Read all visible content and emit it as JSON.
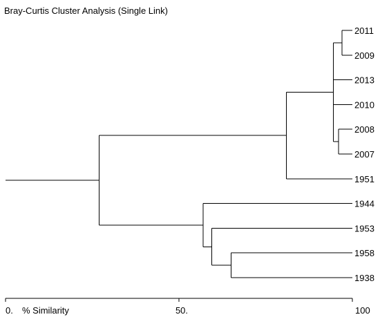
{
  "title": "Bray-Curtis Cluster Analysis (Single Link)",
  "colors": {
    "line": "#000000",
    "text": "#000000",
    "background": "#ffffff"
  },
  "chart_data": {
    "type": "dendrogram",
    "title": "Bray-Curtis Cluster Analysis (Single Link)",
    "xlabel": "% Similarity",
    "xlim": [
      0,
      100
    ],
    "ticks": [
      {
        "value": 0,
        "label": "0."
      },
      {
        "value": 50,
        "label": "50."
      },
      {
        "value": 100,
        "label": "100"
      }
    ],
    "leaves": [
      "2011",
      "2009",
      "2013",
      "2010",
      "2008",
      "2007",
      "1951",
      "1944",
      "1953",
      "1958",
      "1938"
    ],
    "merges": [
      {
        "id": "c2011_2009",
        "left": "2011",
        "right": "2009",
        "similarity": 97.0
      },
      {
        "id": "c2008_2007",
        "left": "2008",
        "right": "2007",
        "similarity": 96.0
      },
      {
        "id": "c_recent",
        "members": [
          "c2011_2009",
          "2013",
          "2010",
          "c2008_2007"
        ],
        "similarity": 94.5
      },
      {
        "id": "c_recent_1951",
        "left": "c_recent",
        "right": "1951",
        "similarity": 81.0
      },
      {
        "id": "c1958_1938",
        "left": "1958",
        "right": "1938",
        "similarity": 65.0
      },
      {
        "id": "c1953",
        "left": "1953",
        "right": "c1958_1938",
        "similarity": 59.5
      },
      {
        "id": "c1944",
        "left": "1944",
        "right": "c1953",
        "similarity": 57.0
      },
      {
        "id": "root",
        "left": "c_recent_1951",
        "right": "c1944",
        "similarity": 27.0
      }
    ]
  }
}
